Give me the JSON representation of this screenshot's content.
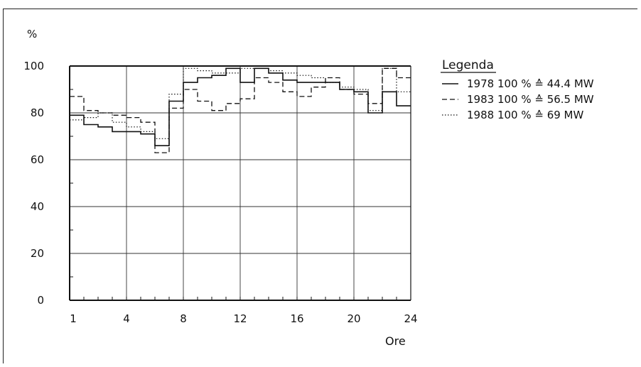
{
  "chart_data": {
    "type": "line",
    "ylabel": "%",
    "xlabel": "Ore",
    "xlim": [
      1,
      24
    ],
    "ylim": [
      0,
      100
    ],
    "x_ticks": [
      1,
      4,
      8,
      12,
      16,
      20,
      24
    ],
    "y_ticks": [
      0,
      20,
      40,
      60,
      80,
      100
    ],
    "grid": true,
    "legend_position": "right",
    "legend_title": "Legenda",
    "x": [
      1,
      2,
      3,
      4,
      5,
      6,
      7,
      8,
      9,
      10,
      11,
      12,
      13,
      14,
      15,
      16,
      17,
      18,
      19,
      20,
      21,
      22,
      23,
      24
    ],
    "series": [
      {
        "name": "1978",
        "legend_text": "1978  100 %  ≙ 44.4 MW",
        "style": "solid",
        "values": [
          79,
          75,
          74,
          72,
          72,
          71,
          66,
          85,
          93,
          95,
          96,
          99,
          93,
          99,
          97,
          94,
          93,
          93,
          93,
          90,
          89,
          80,
          89,
          83
        ]
      },
      {
        "name": "1983",
        "legend_text": "1983  100 %  ≙ 56.5 MW",
        "style": "dashed",
        "values": [
          87,
          81,
          80,
          79,
          78,
          76,
          63,
          82,
          90,
          85,
          81,
          84,
          86,
          95,
          93,
          89,
          87,
          91,
          95,
          90,
          88,
          84,
          99,
          95
        ]
      },
      {
        "name": "1988",
        "legend_text": "1988  100 %  ≙ 69 MW",
        "style": "dotted",
        "values": [
          77,
          78,
          80,
          76,
          74,
          72,
          69,
          88,
          99,
          98,
          97,
          97,
          99,
          99,
          98,
          97,
          96,
          95,
          93,
          91,
          90,
          81,
          99,
          89
        ]
      }
    ]
  }
}
